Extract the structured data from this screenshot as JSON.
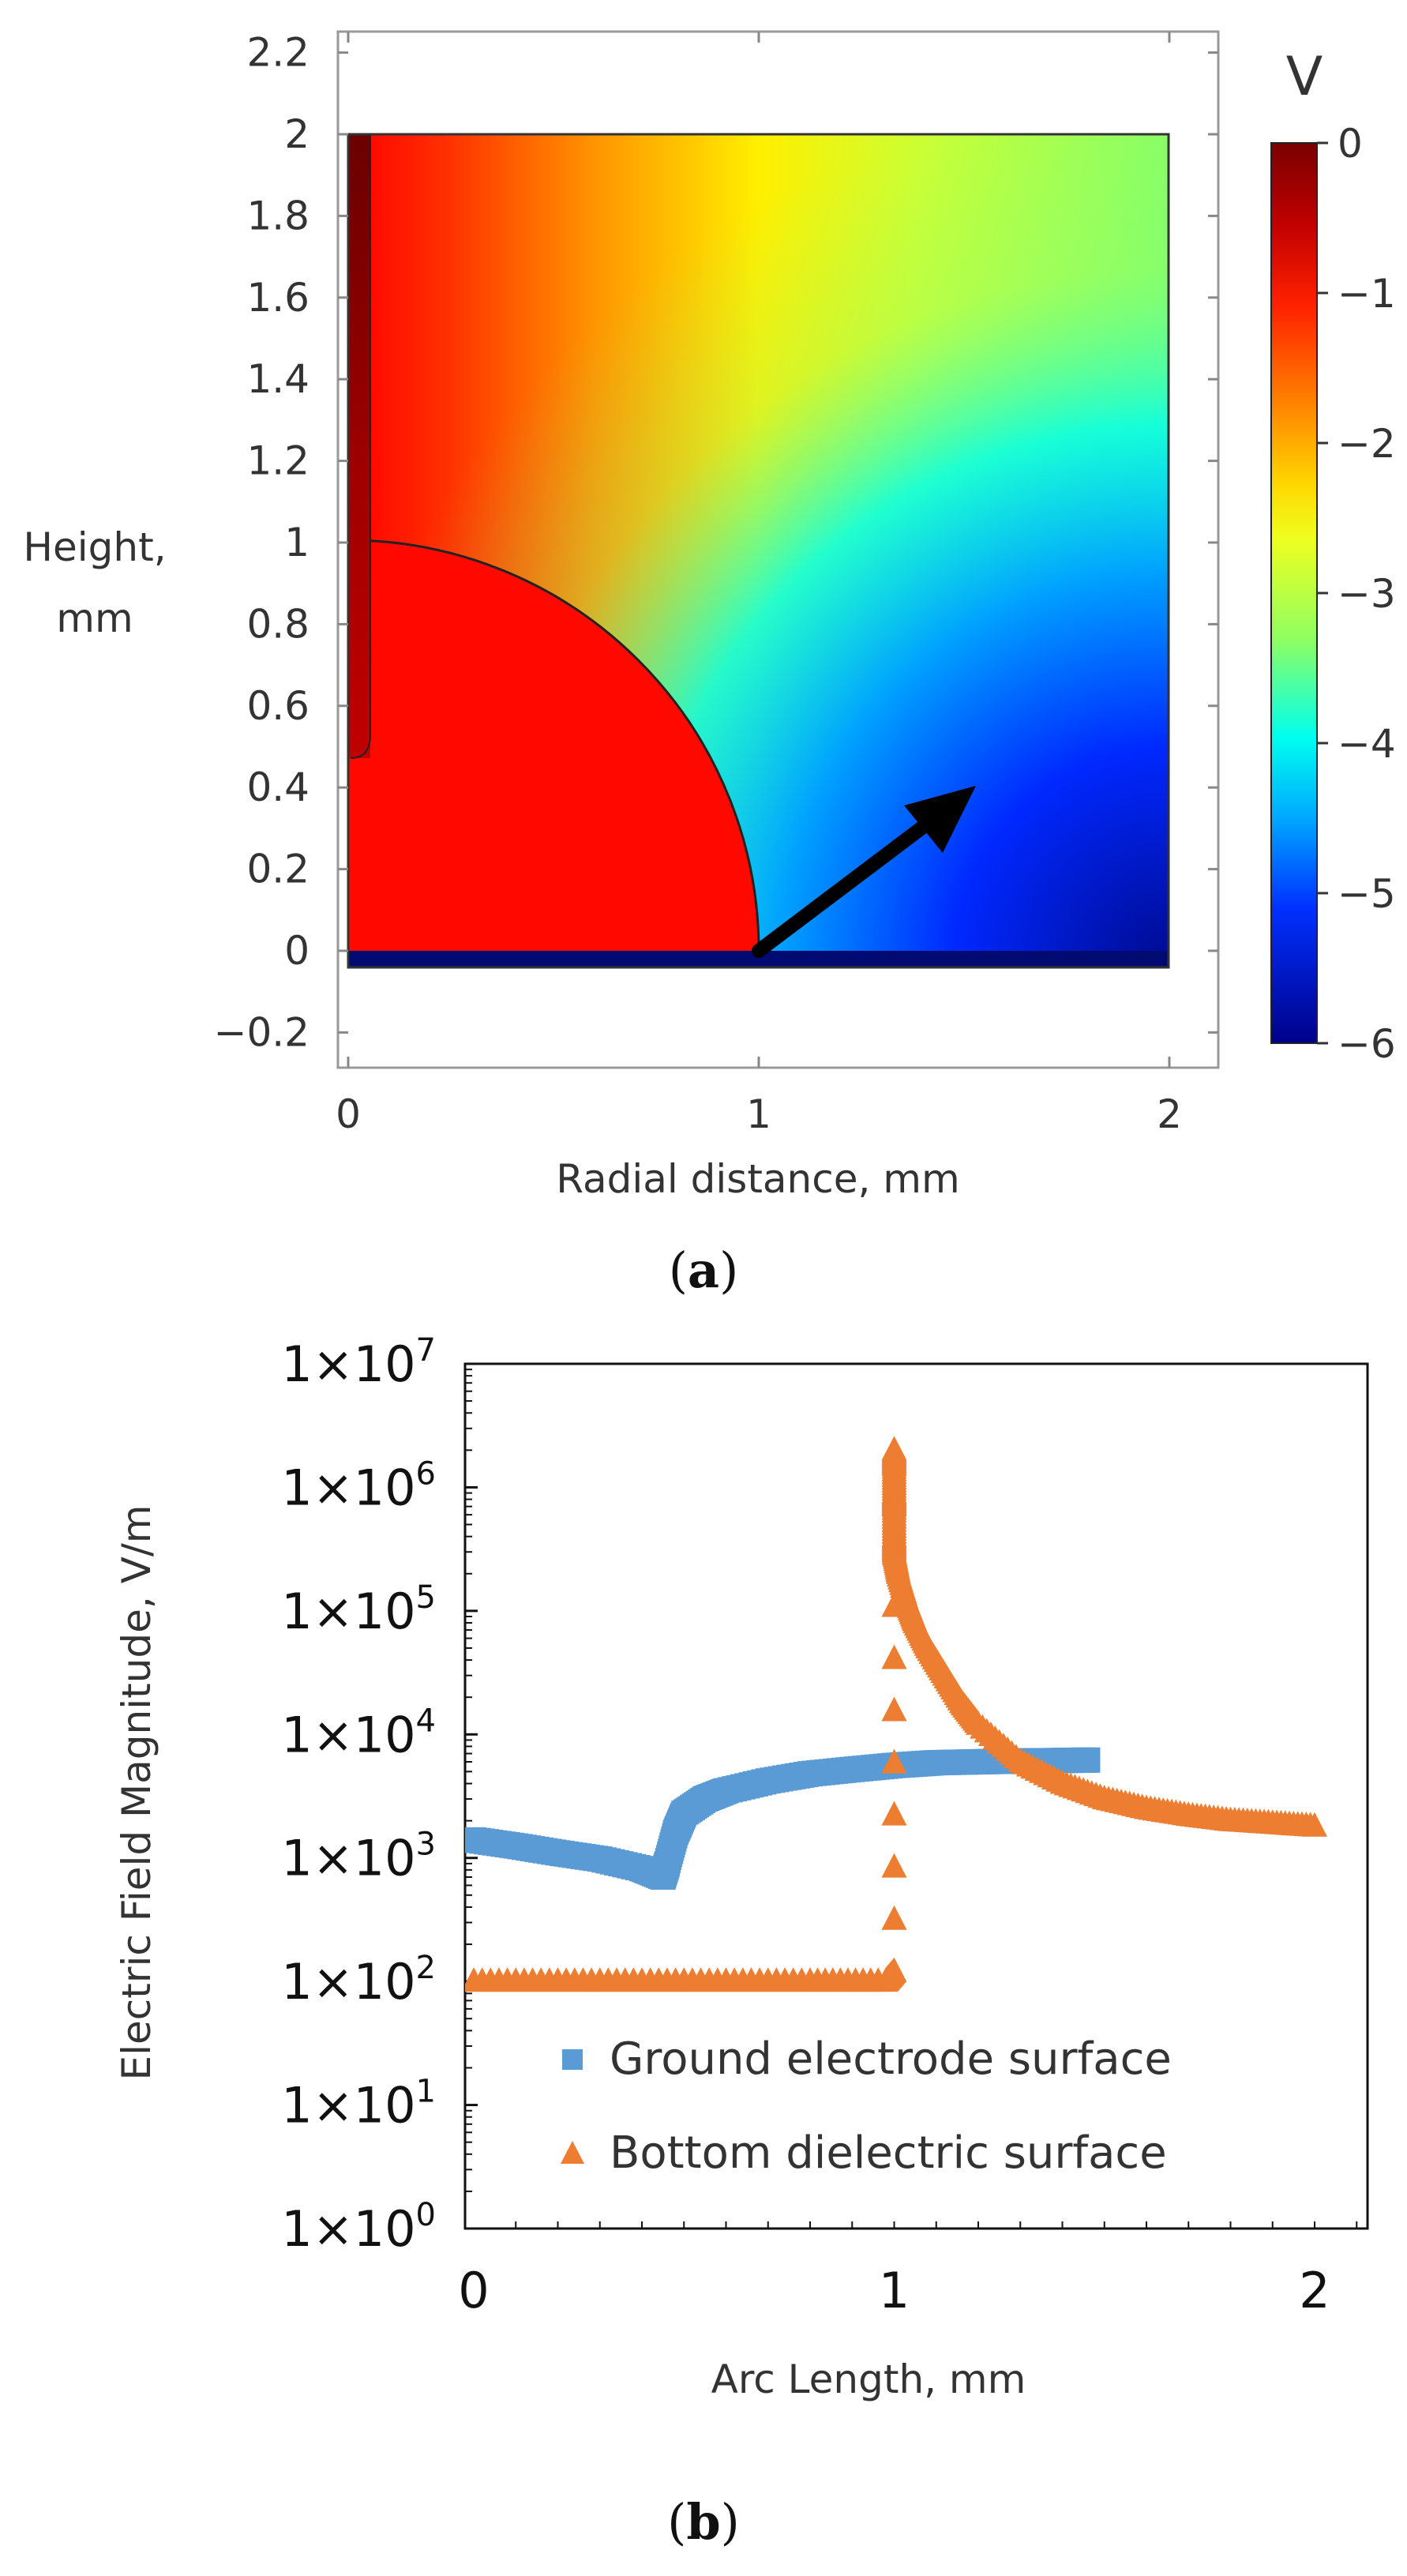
{
  "chart_data": [
    {
      "id": "a",
      "type": "heatmap",
      "xlabel": "Radial distance, mm",
      "ylabel": "Height, mm",
      "xlim": [
        0,
        2
      ],
      "ylim": [
        -0.2,
        2.2
      ],
      "x_ticks": [
        "0",
        "1",
        "2"
      ],
      "y_ticks": [
        "2.2",
        "2",
        "1.8",
        "1.6",
        "1.4",
        "1.2",
        "1",
        "0.8",
        "0.6",
        "0.4",
        "0.2",
        "0",
        "−0.2"
      ],
      "colorbar": {
        "unit": "V",
        "ticks": [
          "0",
          "−1",
          "−2",
          "−3",
          "−4",
          "−5",
          "−6"
        ],
        "range": [
          -6,
          0
        ],
        "colormap": [
          "#7a0000",
          "#ff1a00",
          "#ff8800",
          "#ffff00",
          "#aaff44",
          "#00ffff",
          "#0070ff",
          "#000090"
        ]
      },
      "caption": "(a)",
      "caption_letter": "a",
      "domain_outline": {
        "x": [
          0,
          2
        ],
        "y": [
          -0.05,
          2
        ]
      },
      "electrode_arc_radius": 1,
      "arrow": {
        "from": [
          1,
          0
        ],
        "to": [
          1.53,
          0.41
        ]
      }
    },
    {
      "id": "b",
      "type": "scatter",
      "xlabel": "Arc Length, mm",
      "ylabel": "Electric Field Magnitude, V/m",
      "yscale": "log",
      "xlim": [
        0,
        2.2
      ],
      "ylim": [
        1,
        10000000
      ],
      "x_ticks": [
        "0",
        "1",
        "2"
      ],
      "y_ticks": [
        {
          "base": "1×10",
          "exp": "7"
        },
        {
          "base": "1×10",
          "exp": "6"
        },
        {
          "base": "1×10",
          "exp": "5"
        },
        {
          "base": "1×10",
          "exp": "4"
        },
        {
          "base": "1×10",
          "exp": "3"
        },
        {
          "base": "1×10",
          "exp": "2"
        },
        {
          "base": "1×10",
          "exp": "1"
        },
        {
          "base": "1×10",
          "exp": "0"
        }
      ],
      "legend_position": "lower-center",
      "caption": "(b)",
      "caption_letter": "b",
      "series": [
        {
          "name": "Ground electrode surface",
          "color": "#5b9bd5",
          "marker": "square",
          "x": [
            0,
            0.1,
            0.2,
            0.3,
            0.4,
            0.45,
            0.46,
            0.48,
            0.5,
            0.55,
            0.6,
            0.7,
            0.8,
            0.9,
            1.0,
            1.1,
            1.2,
            1.3,
            1.4,
            1.46
          ],
          "y": [
            1400,
            1250,
            1100,
            980,
            820,
            700,
            900,
            1600,
            2300,
            3000,
            3500,
            4200,
            4800,
            5200,
            5600,
            5900,
            6000,
            6100,
            6150,
            6200
          ]
        },
        {
          "name": "Bottom dielectric surface",
          "color": "#ed7d31",
          "marker": "triangle",
          "x": [
            0,
            0.2,
            0.4,
            0.6,
            0.8,
            0.98,
            1.0,
            1.0,
            1.0,
            1.0,
            1.0,
            1.0,
            1.0,
            1.01,
            1.03,
            1.05,
            1.08,
            1.12,
            1.16,
            1.2,
            1.3,
            1.4,
            1.5,
            1.6,
            1.7,
            1.8,
            1.9,
            2.0
          ],
          "y": [
            100,
            100,
            100,
            100,
            100,
            100,
            120,
            2000000,
            1500000,
            900000,
            700000,
            400000,
            300000,
            200000,
            120000,
            80000,
            50000,
            30000,
            18000,
            12000,
            6000,
            4000,
            3000,
            2500,
            2200,
            2000,
            1900,
            1800
          ]
        }
      ]
    }
  ]
}
